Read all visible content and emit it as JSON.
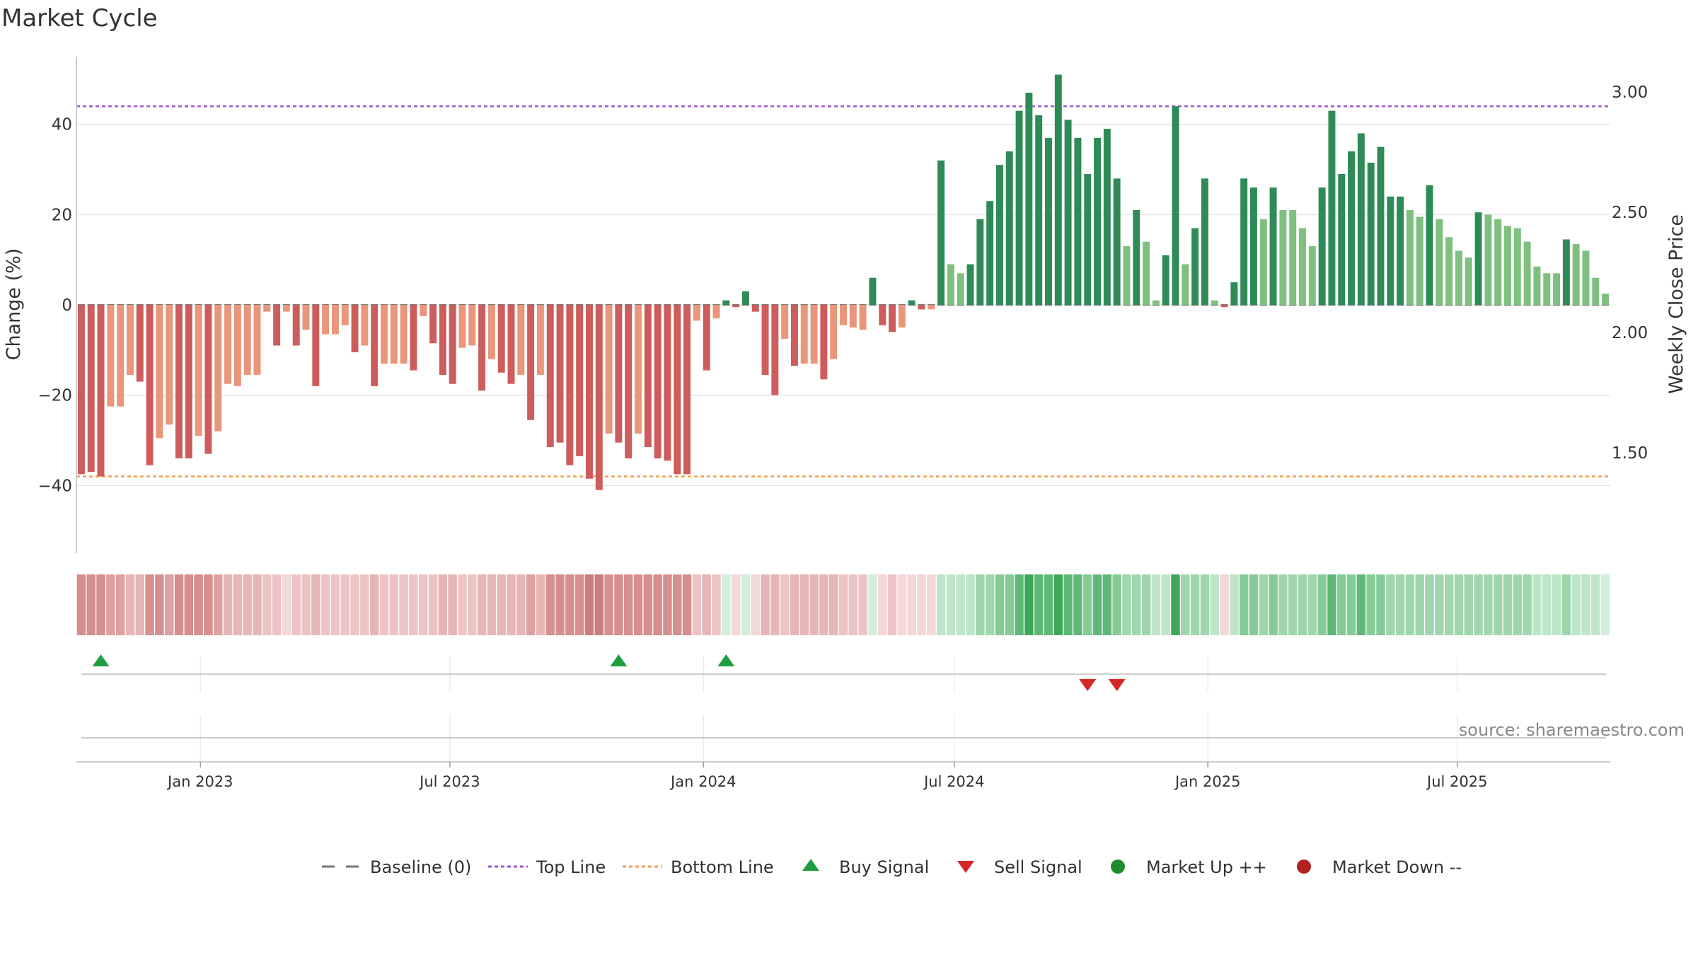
{
  "title": "Market Cycle",
  "source": "source: sharemaestro.com",
  "colors": {
    "strong_neg": "#cd5c5c",
    "weak_neg": "#e9967a",
    "strong_pos": "#2e8b57",
    "weak_pos": "#7fbf7f",
    "top_line": "#9b59d0",
    "bottom_line": "#f0a050",
    "buy": "#1e9e40",
    "sell": "#d62728",
    "market_up": "#1e8c2e",
    "market_down": "#b22222",
    "baseline": "#777777"
  },
  "legend": [
    {
      "key": "baseline",
      "label": "Baseline (0)",
      "icon": "dash-line-icon"
    },
    {
      "key": "top",
      "label": "Top Line",
      "icon": "dotted-line-icon"
    },
    {
      "key": "bottom",
      "label": "Bottom Line",
      "icon": "dotted-line-icon"
    },
    {
      "key": "buy",
      "label": "Buy Signal",
      "icon": "triangle-up-icon"
    },
    {
      "key": "sell",
      "label": "Sell Signal",
      "icon": "triangle-down-icon"
    },
    {
      "key": "up",
      "label": "Market Up ++",
      "icon": "circle-icon"
    },
    {
      "key": "down",
      "label": "Market Down --",
      "icon": "circle-icon"
    }
  ],
  "chart_data": {
    "type": "bar",
    "ylabel": "Change (%)",
    "y2label": "Weekly Close Price",
    "ylim": [
      -55,
      55
    ],
    "yticks": [
      -40,
      -20,
      0,
      20,
      40
    ],
    "y2ticks": [
      {
        "value": 1.5,
        "label": "1.50"
      },
      {
        "value": 2.0,
        "label": "2.00"
      },
      {
        "value": 2.5,
        "label": "2.50"
      },
      {
        "value": 3.0,
        "label": "3.00"
      }
    ],
    "top_line": 44,
    "bottom_line": -38,
    "x_start": "2022-10-03",
    "x_end": "2025-10-20",
    "date_ticks": [
      {
        "date": "2023-01-01",
        "label": "Jan 2023"
      },
      {
        "date": "2023-07-01",
        "label": "Jul 2023"
      },
      {
        "date": "2024-01-01",
        "label": "Jan 2024"
      },
      {
        "date": "2024-07-01",
        "label": "Jul 2024"
      },
      {
        "date": "2025-01-01",
        "label": "Jan 2025"
      },
      {
        "date": "2025-07-01",
        "label": "Jul 2025"
      }
    ],
    "values": [
      -37.5,
      -37,
      -38,
      -22.5,
      -22.5,
      -15.5,
      -17,
      -35.5,
      -29.5,
      -26.5,
      -34,
      -34,
      -29,
      -33,
      -28,
      -17.5,
      -18,
      -15.5,
      -15.5,
      -1.5,
      -9,
      -1.5,
      -9,
      -5.5,
      -18,
      -6.5,
      -6.5,
      -4.5,
      -10.5,
      -9,
      -18,
      -13,
      -13,
      -13,
      -14.5,
      -2.5,
      -8.5,
      -15.5,
      -17.5,
      -9.5,
      -9,
      -19,
      -12,
      -15,
      -17.5,
      -15.5,
      -25.5,
      -15.5,
      -31.5,
      -30.5,
      -35.5,
      -33.5,
      -38.5,
      -41,
      -28.5,
      -30.5,
      -34,
      -28.5,
      -31.5,
      -34,
      -34.5,
      -37.5,
      -37.5,
      -3.5,
      -14.5,
      -3,
      1,
      -0.5,
      3,
      -1.5,
      -15.5,
      -20,
      -7.5,
      -13.5,
      -13,
      -13,
      -16.5,
      -12,
      -4.5,
      -5,
      -5.5,
      6,
      -4.5,
      -6,
      -5,
      1,
      -1,
      -1,
      32,
      9,
      7,
      9,
      19,
      23,
      31,
      34,
      43,
      47,
      42,
      37,
      51,
      41,
      37,
      29,
      37,
      39,
      28,
      13,
      21,
      14,
      1,
      11,
      44,
      9,
      17,
      28,
      1,
      -0.5,
      5,
      28,
      26,
      19,
      26,
      21,
      21,
      17,
      13,
      26,
      43,
      29,
      34,
      38,
      31.5,
      35,
      24,
      24,
      21,
      19.5,
      26.5,
      19,
      15,
      12,
      10.5,
      20.5,
      20,
      19,
      17.5,
      17,
      14,
      8.5,
      7,
      7,
      14.5,
      13.5,
      12,
      6,
      2.5
    ],
    "shades": [
      -5,
      -5,
      -5,
      -4,
      -4,
      -3,
      -3,
      -5,
      -5,
      -4,
      -5,
      -5,
      -5,
      -5,
      -4,
      -3,
      -3,
      -3,
      -3,
      -2,
      -2,
      -1,
      -2,
      -2,
      -3,
      -2,
      -2,
      -2,
      -2,
      -2,
      -3,
      -2,
      -2,
      -2,
      -2,
      -2,
      -2,
      -3,
      -3,
      -2,
      -2,
      -3,
      -3,
      -3,
      -3,
      -3,
      -4,
      -3,
      -5,
      -5,
      -5,
      -5,
      -6,
      -6,
      -5,
      -5,
      -5,
      -5,
      -5,
      -5,
      -5,
      -5,
      -5,
      -2,
      -3,
      -2,
      1,
      -1,
      1,
      -1,
      -3,
      -3,
      -2,
      -3,
      -3,
      -3,
      -3,
      -3,
      -2,
      -2,
      -2,
      1,
      -1,
      -2,
      -1,
      -1,
      -1,
      -1,
      2,
      2,
      2,
      2,
      3,
      3,
      4,
      4,
      5,
      6,
      5,
      5,
      6,
      5,
      5,
      4,
      5,
      5,
      4,
      3,
      3,
      3,
      2,
      2,
      6,
      3,
      3,
      3,
      2,
      -1,
      2,
      4,
      4,
      3,
      4,
      3,
      3,
      3,
      3,
      4,
      5,
      4,
      4,
      5,
      4,
      4,
      3,
      3,
      3,
      3,
      3,
      3,
      3,
      3,
      3,
      3,
      3,
      3,
      3,
      3,
      3,
      2,
      2,
      2,
      3,
      2,
      2,
      2,
      1
    ],
    "buy_signals": [
      2,
      55,
      66
    ],
    "sell_signals": [
      103,
      106
    ]
  }
}
